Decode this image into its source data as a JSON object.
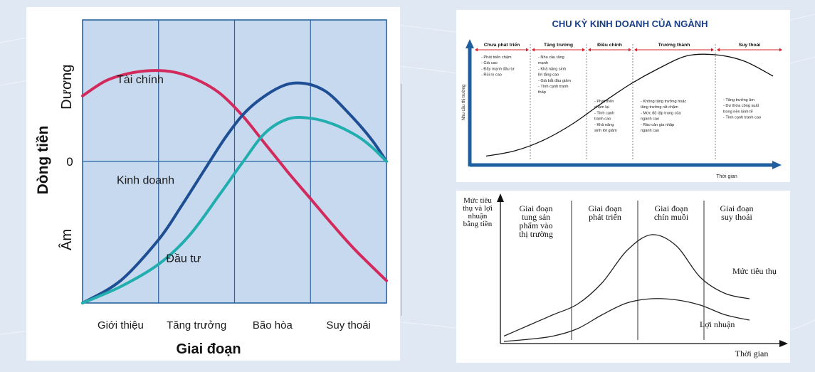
{
  "chart_data": [
    {
      "type": "line",
      "ylabel": "Dòng tiền",
      "xlabel": "Giai đoạn",
      "y_levels": [
        "Dương",
        "0",
        "Âm"
      ],
      "stages": [
        "Giới thiệu",
        "Tăng trưởng",
        "Bão hòa",
        "Suy thoái"
      ],
      "xlim": [
        0,
        4
      ],
      "ylim": [
        -1.9,
        1.9
      ],
      "series": [
        {
          "name": "Tài chính",
          "color": "#d22a5c",
          "x": [
            0,
            0.3,
            0.6,
            0.9,
            1.2,
            1.5,
            1.8,
            2.1,
            2.4,
            2.7,
            3.0,
            3.3,
            3.6,
            4.0
          ],
          "values": [
            0.88,
            1.08,
            1.18,
            1.22,
            1.2,
            1.1,
            0.92,
            0.62,
            0.24,
            -0.14,
            -0.5,
            -0.86,
            -1.2,
            -1.6
          ]
        },
        {
          "name": "Kinh doanh",
          "color": "#1e4f94",
          "x": [
            0,
            0.5,
            1.0,
            1.3,
            1.6,
            1.9,
            2.2,
            2.6,
            2.9,
            3.2,
            3.5,
            3.8,
            4.0
          ],
          "values": [
            -1.9,
            -1.6,
            -1.05,
            -0.6,
            -0.12,
            0.35,
            0.72,
            1.0,
            1.05,
            0.94,
            0.65,
            0.3,
            0.0
          ]
        },
        {
          "name": "Đầu tư",
          "color": "#22aeae",
          "x": [
            0,
            0.5,
            1.0,
            1.4,
            1.8,
            2.1,
            2.4,
            2.7,
            3.0,
            3.3,
            3.6,
            3.8,
            4.0
          ],
          "values": [
            -1.9,
            -1.68,
            -1.38,
            -1.0,
            -0.45,
            -0.02,
            0.38,
            0.57,
            0.58,
            0.5,
            0.35,
            0.2,
            0.0
          ]
        }
      ]
    },
    {
      "type": "line",
      "title": "CHU KỲ KINH DOANH CỦA NGÀNH",
      "ylabel": "Nhu cầu thị trường",
      "xlabel": "Thời gian",
      "phases": [
        {
          "label": "Chưa phát triển",
          "notes": [
            "- Phát triển chậm",
            "- Giá cao",
            "- Đẩy mạnh đầu tư",
            "- Rủi ro cao"
          ]
        },
        {
          "label": "Tăng trưởng",
          "notes": [
            "- Nhu cầu tăng",
            "mạnh",
            "- Khả năng sinh",
            "lời tăng cao",
            "- Giá bắt đầu giảm",
            "- Tính cạnh tranh",
            "thấp"
          ]
        },
        {
          "label": "Điều chỉnh",
          "notes": [
            "- Phát triển",
            "chậm lại",
            "- Tính cạnh",
            "tranh cao",
            "- Khả năng",
            "sinh lời giảm"
          ]
        },
        {
          "label": "Trưởng thành",
          "notes": [
            "- Không tăng trưởng hoặc",
            "tăng trưởng rất chậm",
            "- Mức độ tập trung của",
            "ngành cao",
            "- Rào cản gia nhập",
            "ngành cao"
          ]
        },
        {
          "label": "Suy thoái",
          "notes": [
            "- Tăng trưởng âm",
            "- Dư thừa công suất",
            "trong nền kinh tế",
            "- Tính cạnh tranh cao"
          ]
        }
      ],
      "x": [
        0,
        1,
        2,
        3,
        4,
        5,
        6,
        7,
        8,
        9,
        10
      ],
      "values": [
        0.03,
        0.08,
        0.18,
        0.33,
        0.52,
        0.7,
        0.85,
        0.97,
        0.98,
        0.92,
        0.78
      ]
    },
    {
      "type": "line",
      "ylabel": "Mức tiêu thụ và lợi nhuận bằng tiền",
      "xlabel": "Thời gian",
      "stages": [
        [
          "Giai đoạn",
          "tung sản",
          "phẩm vào",
          "thị trường"
        ],
        [
          "Giai đoạn",
          "phát triển"
        ],
        [
          "Giai đoạn",
          "chín muồi"
        ],
        [
          "Giai đoạn",
          "suy thoái"
        ]
      ],
      "series": [
        {
          "name": "Mức tiêu thụ",
          "x": [
            0,
            1,
            2,
            3,
            4,
            5,
            6,
            7,
            8,
            9,
            10
          ],
          "values": [
            0.05,
            0.15,
            0.25,
            0.35,
            0.55,
            0.85,
            1.0,
            0.9,
            0.6,
            0.45,
            0.4
          ]
        },
        {
          "name": "Lợi nhuận",
          "x": [
            0,
            1,
            2,
            3,
            4,
            5,
            6,
            7,
            8,
            9,
            10
          ],
          "values": [
            0.0,
            0.02,
            0.05,
            0.12,
            0.25,
            0.36,
            0.4,
            0.39,
            0.34,
            0.25,
            0.2
          ]
        }
      ]
    }
  ]
}
